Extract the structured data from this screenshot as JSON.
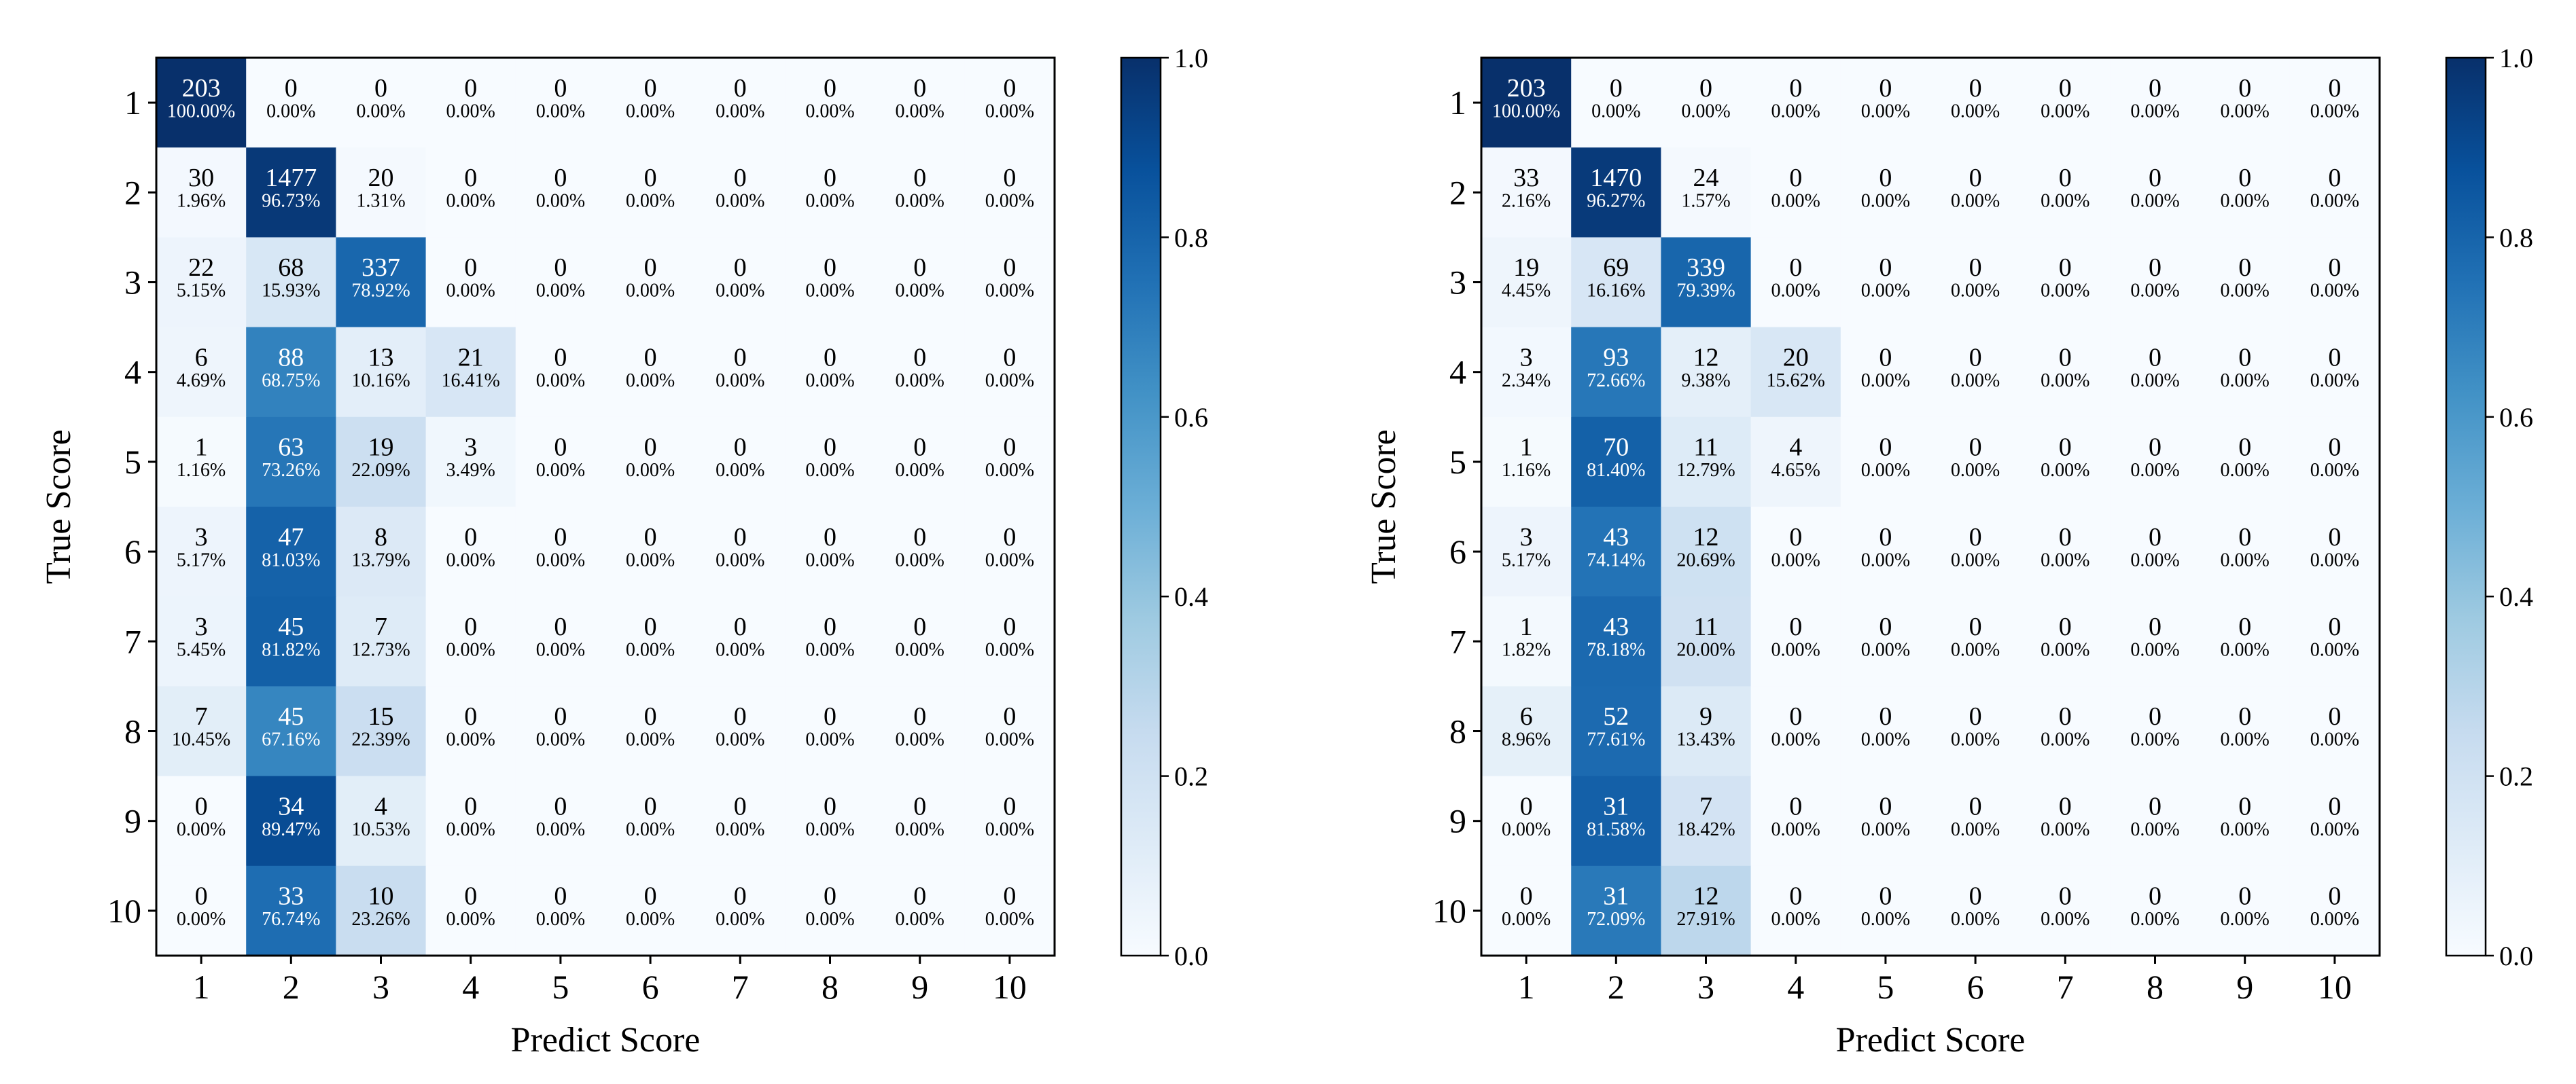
{
  "chart_data": [
    {
      "type": "heatmap",
      "name": "left-matrix",
      "xlabel": "Predict Score",
      "ylabel": "True Score",
      "x_categories": [
        "1",
        "2",
        "3",
        "4",
        "5",
        "6",
        "7",
        "8",
        "9",
        "10"
      ],
      "y_categories": [
        "1",
        "2",
        "3",
        "4",
        "5",
        "6",
        "7",
        "8",
        "9",
        "10"
      ],
      "counts": [
        [
          203,
          0,
          0,
          0,
          0,
          0,
          0,
          0,
          0,
          0
        ],
        [
          30,
          1477,
          20,
          0,
          0,
          0,
          0,
          0,
          0,
          0
        ],
        [
          22,
          68,
          337,
          0,
          0,
          0,
          0,
          0,
          0,
          0
        ],
        [
          6,
          88,
          13,
          21,
          0,
          0,
          0,
          0,
          0,
          0
        ],
        [
          1,
          63,
          19,
          3,
          0,
          0,
          0,
          0,
          0,
          0
        ],
        [
          3,
          47,
          8,
          0,
          0,
          0,
          0,
          0,
          0,
          0
        ],
        [
          3,
          45,
          7,
          0,
          0,
          0,
          0,
          0,
          0,
          0
        ],
        [
          7,
          45,
          15,
          0,
          0,
          0,
          0,
          0,
          0,
          0
        ],
        [
          0,
          34,
          4,
          0,
          0,
          0,
          0,
          0,
          0,
          0
        ],
        [
          0,
          33,
          10,
          0,
          0,
          0,
          0,
          0,
          0,
          0
        ]
      ],
      "percents": [
        [
          "100.00%",
          "0.00%",
          "0.00%",
          "0.00%",
          "0.00%",
          "0.00%",
          "0.00%",
          "0.00%",
          "0.00%",
          "0.00%"
        ],
        [
          "1.96%",
          "96.73%",
          "1.31%",
          "0.00%",
          "0.00%",
          "0.00%",
          "0.00%",
          "0.00%",
          "0.00%",
          "0.00%"
        ],
        [
          "5.15%",
          "15.93%",
          "78.92%",
          "0.00%",
          "0.00%",
          "0.00%",
          "0.00%",
          "0.00%",
          "0.00%",
          "0.00%"
        ],
        [
          "4.69%",
          "68.75%",
          "10.16%",
          "16.41%",
          "0.00%",
          "0.00%",
          "0.00%",
          "0.00%",
          "0.00%",
          "0.00%"
        ],
        [
          "1.16%",
          "73.26%",
          "22.09%",
          "3.49%",
          "0.00%",
          "0.00%",
          "0.00%",
          "0.00%",
          "0.00%",
          "0.00%"
        ],
        [
          "5.17%",
          "81.03%",
          "13.79%",
          "0.00%",
          "0.00%",
          "0.00%",
          "0.00%",
          "0.00%",
          "0.00%",
          "0.00%"
        ],
        [
          "5.45%",
          "81.82%",
          "12.73%",
          "0.00%",
          "0.00%",
          "0.00%",
          "0.00%",
          "0.00%",
          "0.00%",
          "0.00%"
        ],
        [
          "10.45%",
          "67.16%",
          "22.39%",
          "0.00%",
          "0.00%",
          "0.00%",
          "0.00%",
          "0.00%",
          "0.00%",
          "0.00%"
        ],
        [
          "0.00%",
          "89.47%",
          "10.53%",
          "0.00%",
          "0.00%",
          "0.00%",
          "0.00%",
          "0.00%",
          "0.00%",
          "0.00%"
        ],
        [
          "0.00%",
          "76.74%",
          "23.26%",
          "0.00%",
          "0.00%",
          "0.00%",
          "0.00%",
          "0.00%",
          "0.00%",
          "0.00%"
        ]
      ],
      "colorbar": {
        "range": [
          0,
          1
        ],
        "ticks": [
          "0.0",
          "0.2",
          "0.4",
          "0.6",
          "0.8",
          "1.0"
        ],
        "colormap": "Blues"
      }
    },
    {
      "type": "heatmap",
      "name": "right-matrix",
      "xlabel": "Predict Score",
      "ylabel": "True Score",
      "x_categories": [
        "1",
        "2",
        "3",
        "4",
        "5",
        "6",
        "7",
        "8",
        "9",
        "10"
      ],
      "y_categories": [
        "1",
        "2",
        "3",
        "4",
        "5",
        "6",
        "7",
        "8",
        "9",
        "10"
      ],
      "counts": [
        [
          203,
          0,
          0,
          0,
          0,
          0,
          0,
          0,
          0,
          0
        ],
        [
          33,
          1470,
          24,
          0,
          0,
          0,
          0,
          0,
          0,
          0
        ],
        [
          19,
          69,
          339,
          0,
          0,
          0,
          0,
          0,
          0,
          0
        ],
        [
          3,
          93,
          12,
          20,
          0,
          0,
          0,
          0,
          0,
          0
        ],
        [
          1,
          70,
          11,
          4,
          0,
          0,
          0,
          0,
          0,
          0
        ],
        [
          3,
          43,
          12,
          0,
          0,
          0,
          0,
          0,
          0,
          0
        ],
        [
          1,
          43,
          11,
          0,
          0,
          0,
          0,
          0,
          0,
          0
        ],
        [
          6,
          52,
          9,
          0,
          0,
          0,
          0,
          0,
          0,
          0
        ],
        [
          0,
          31,
          7,
          0,
          0,
          0,
          0,
          0,
          0,
          0
        ],
        [
          0,
          31,
          12,
          0,
          0,
          0,
          0,
          0,
          0,
          0
        ]
      ],
      "percents": [
        [
          "100.00%",
          "0.00%",
          "0.00%",
          "0.00%",
          "0.00%",
          "0.00%",
          "0.00%",
          "0.00%",
          "0.00%",
          "0.00%"
        ],
        [
          "2.16%",
          "96.27%",
          "1.57%",
          "0.00%",
          "0.00%",
          "0.00%",
          "0.00%",
          "0.00%",
          "0.00%",
          "0.00%"
        ],
        [
          "4.45%",
          "16.16%",
          "79.39%",
          "0.00%",
          "0.00%",
          "0.00%",
          "0.00%",
          "0.00%",
          "0.00%",
          "0.00%"
        ],
        [
          "2.34%",
          "72.66%",
          "9.38%",
          "15.62%",
          "0.00%",
          "0.00%",
          "0.00%",
          "0.00%",
          "0.00%",
          "0.00%"
        ],
        [
          "1.16%",
          "81.40%",
          "12.79%",
          "4.65%",
          "0.00%",
          "0.00%",
          "0.00%",
          "0.00%",
          "0.00%",
          "0.00%"
        ],
        [
          "5.17%",
          "74.14%",
          "20.69%",
          "0.00%",
          "0.00%",
          "0.00%",
          "0.00%",
          "0.00%",
          "0.00%",
          "0.00%"
        ],
        [
          "1.82%",
          "78.18%",
          "20.00%",
          "0.00%",
          "0.00%",
          "0.00%",
          "0.00%",
          "0.00%",
          "0.00%",
          "0.00%"
        ],
        [
          "8.96%",
          "77.61%",
          "13.43%",
          "0.00%",
          "0.00%",
          "0.00%",
          "0.00%",
          "0.00%",
          "0.00%",
          "0.00%"
        ],
        [
          "0.00%",
          "81.58%",
          "18.42%",
          "0.00%",
          "0.00%",
          "0.00%",
          "0.00%",
          "0.00%",
          "0.00%",
          "0.00%"
        ],
        [
          "0.00%",
          "72.09%",
          "27.91%",
          "0.00%",
          "0.00%",
          "0.00%",
          "0.00%",
          "0.00%",
          "0.00%",
          "0.00%"
        ]
      ],
      "colorbar": {
        "range": [
          0,
          1
        ],
        "ticks": [
          "0.0",
          "0.2",
          "0.4",
          "0.6",
          "0.8",
          "1.0"
        ],
        "colormap": "Blues"
      }
    }
  ]
}
